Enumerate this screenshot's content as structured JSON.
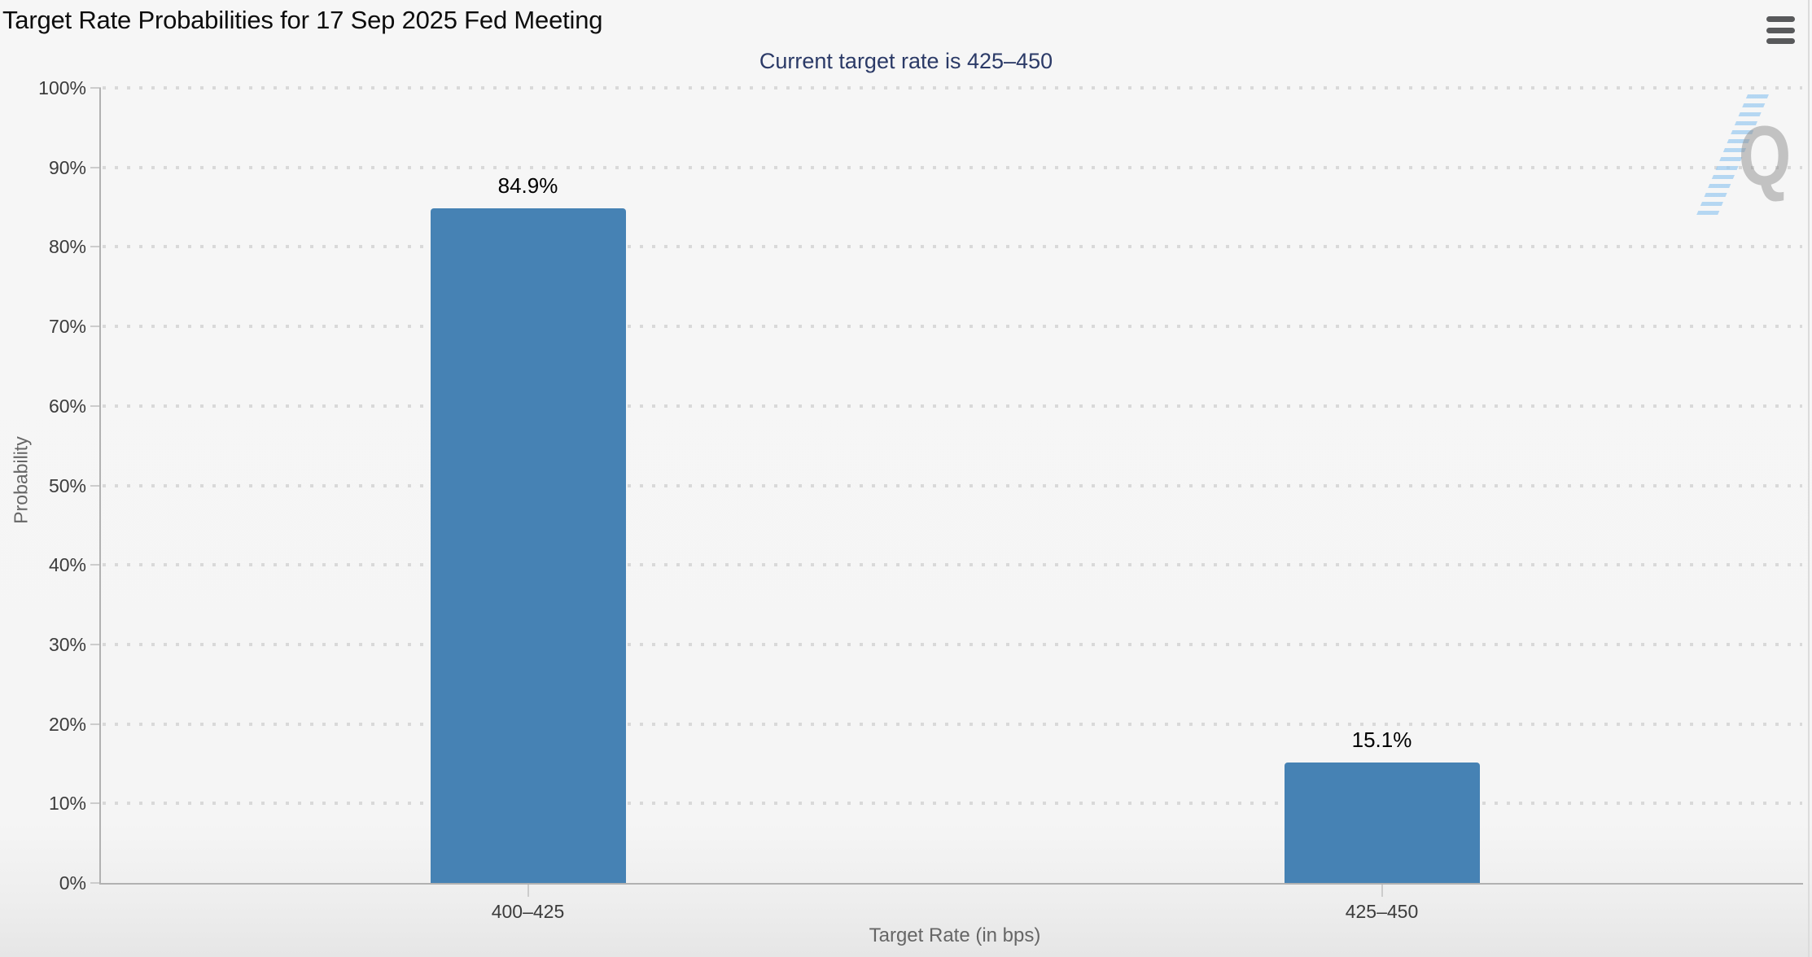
{
  "menu": {
    "icon": "hamburger-menu-icon"
  },
  "watermark": {
    "letter": "Q"
  },
  "colors": {
    "background": "#f5f5f5",
    "bar": "#4682b4",
    "subtitle_text": "#2b3a67",
    "grid_dot": "#d9d9d9",
    "axis_line": "#b1b1b1",
    "tick_label": "#3c3c3c",
    "axis_title": "#666666",
    "title_text": "#0d0d0d",
    "menu_icon": "#58595b",
    "watermark_q": "#8f8f8f",
    "watermark_stripes": "#a5cdef"
  },
  "chart_data": {
    "type": "bar",
    "title": "Target Rate Probabilities for 17 Sep 2025 Fed Meeting",
    "subtitle": "Current target rate is 425–450",
    "categories": [
      "400–425",
      "425–450"
    ],
    "values": [
      84.9,
      15.1
    ],
    "value_labels": [
      "84.9%",
      "15.1%"
    ],
    "xlabel": "Target Rate (in bps)",
    "ylabel": "Probability",
    "ylim": [
      0,
      100
    ],
    "ytick_step": 10,
    "ytick_labels": [
      "0%",
      "10%",
      "20%",
      "30%",
      "40%",
      "50%",
      "60%",
      "70%",
      "80%",
      "90%",
      "100%"
    ],
    "grid": "horizontal-dotted",
    "legend": "none",
    "bar_color": "#4682b4"
  }
}
